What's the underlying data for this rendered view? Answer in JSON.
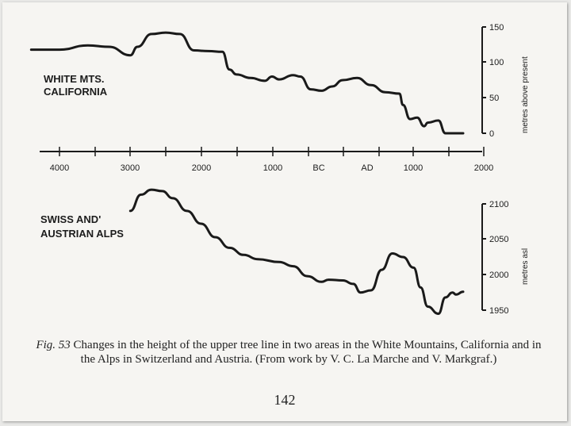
{
  "chart_data": [
    {
      "type": "line",
      "label": "WHITE MTS.\nCALIFORNIA",
      "label_lines": [
        "WHITE MTS.",
        "CALIFORNIA"
      ],
      "ylabel": "metres above present",
      "yticks": [
        "150",
        "100",
        "50",
        "0"
      ],
      "ytick_values": [
        150,
        100,
        50,
        0
      ],
      "ylim": [
        0,
        150
      ],
      "x_axis": "years BC/AD",
      "x": [
        -4400,
        -4000,
        -3600,
        -3300,
        -3000,
        -2900,
        -2700,
        -2500,
        -2300,
        -2100,
        -1900,
        -1700,
        -1600,
        -1500,
        -1300,
        -1100,
        -1000,
        -900,
        -700,
        -600,
        -450,
        -300,
        -150,
        0,
        200,
        400,
        600,
        800,
        850,
        950,
        1050,
        1150,
        1200,
        1350,
        1450,
        1550,
        1700
      ],
      "values": [
        118,
        118,
        124,
        122,
        110,
        122,
        140,
        142,
        140,
        117,
        116,
        115,
        90,
        83,
        78,
        74,
        80,
        76,
        82,
        80,
        62,
        60,
        66,
        75,
        78,
        68,
        58,
        56,
        40,
        20,
        22,
        10,
        15,
        18,
        0,
        0,
        0
      ]
    },
    {
      "type": "line",
      "label": "SWISS AND'\nAUSTRIAN ALPS",
      "label_lines": [
        "SWISS AND'",
        "AUSTRIAN ALPS"
      ],
      "ylabel": "metres asl",
      "yticks": [
        "2100",
        "2050",
        "2000",
        "1950"
      ],
      "ytick_values": [
        2100,
        2050,
        2000,
        1950
      ],
      "ylim": [
        1950,
        2100
      ],
      "x_axis": "years BC/AD",
      "x": [
        -3000,
        -2850,
        -2700,
        -2550,
        -2400,
        -2200,
        -2000,
        -1800,
        -1600,
        -1400,
        -1200,
        -900,
        -700,
        -500,
        -300,
        -200,
        0,
        150,
        250,
        400,
        550,
        700,
        850,
        1000,
        1100,
        1200,
        1350,
        1450,
        1550,
        1600,
        1700
      ],
      "values": [
        2090,
        2113,
        2120,
        2118,
        2108,
        2090,
        2072,
        2053,
        2038,
        2028,
        2022,
        2018,
        2012,
        1998,
        1990,
        1993,
        1992,
        1987,
        1975,
        1978,
        2007,
        2030,
        2025,
        2010,
        1982,
        1955,
        1945,
        1968,
        1975,
        1972,
        1976
      ]
    }
  ],
  "x_axis": {
    "tick_labels": [
      "4000",
      "3000",
      "2000",
      "1000",
      "BC",
      "AD",
      "1000",
      "2000"
    ],
    "tick_values": [
      -4000,
      -3000,
      -2000,
      -1000,
      null,
      null,
      1000,
      2000
    ]
  },
  "caption": {
    "fig_label": "Fig. 53",
    "text": " Changes in the height of the upper tree line in two areas in the White Mountains, California and in the Alps in Switzerland and Austria. (From work by V. C. La Marche and V. Markgraf.)"
  },
  "page_number": "142"
}
